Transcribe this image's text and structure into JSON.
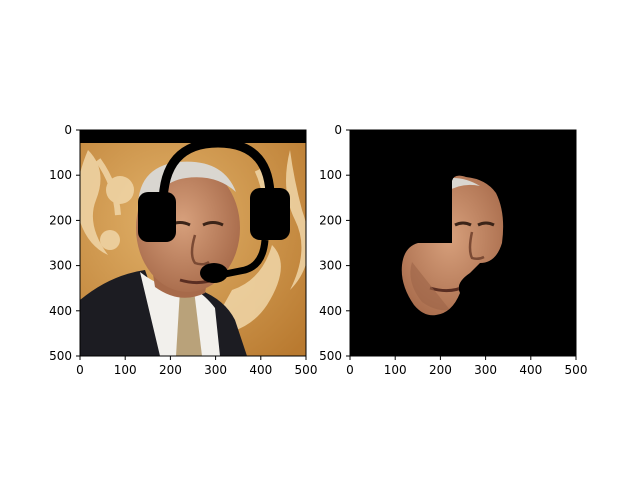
{
  "figure": {
    "background": "#ffffff",
    "axis_color": "#000000"
  },
  "panels": [
    {
      "name": "left-panel",
      "image": "portrait-with-headset-overlay",
      "xlim": [
        0,
        500
      ],
      "ylim": [
        500,
        0
      ],
      "xticks": [
        "0",
        "100",
        "200",
        "300",
        "400",
        "500"
      ],
      "yticks": [
        "0",
        "100",
        "200",
        "300",
        "400",
        "500"
      ]
    },
    {
      "name": "right-panel",
      "image": "masked-face-on-black",
      "xlim": [
        0,
        500
      ],
      "ylim": [
        500,
        0
      ],
      "xticks": [
        "0",
        "100",
        "200",
        "300",
        "400",
        "500"
      ],
      "yticks": [
        "0",
        "100",
        "200",
        "300",
        "400",
        "500"
      ]
    }
  ],
  "colors": {
    "background_tan": "#c98a3a",
    "emblem_light": "#f0d6a8",
    "skin": "#c9906c",
    "skin_shadow": "#9c6448",
    "hair": "#d9d6d0",
    "suit": "#1c1c22",
    "shirt": "#f2f0ec",
    "tie": "#b9a27a",
    "headset": "#000000",
    "mask_bg": "#000000"
  }
}
